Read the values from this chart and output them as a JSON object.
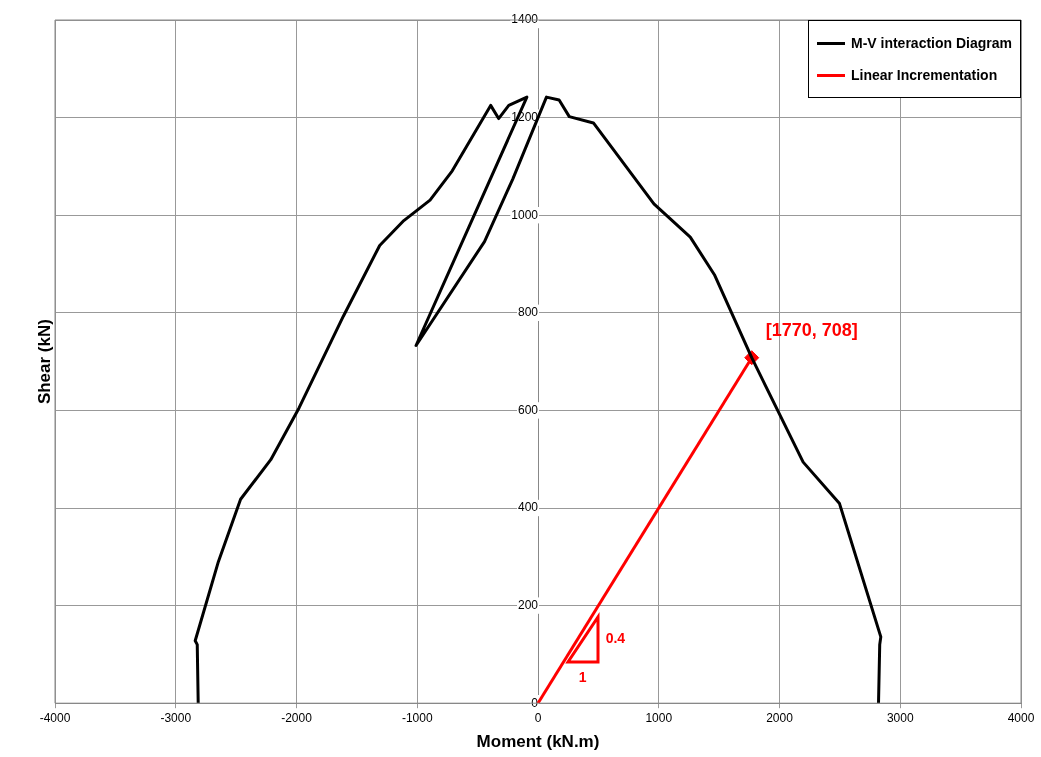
{
  "chart_data": {
    "type": "line",
    "xlabel": "Moment (kN.m)",
    "ylabel": "Shear (kN)",
    "xlim": [
      -4000,
      4000
    ],
    "xticks": [
      -4000,
      -3000,
      -2000,
      -1000,
      0,
      1000,
      2000,
      3000,
      4000
    ],
    "ylim": [
      0,
      1400
    ],
    "yticks": [
      0,
      200,
      400,
      600,
      800,
      1000,
      1200,
      1400
    ],
    "grid": true,
    "legend": "top right",
    "line_style": "solid",
    "series": [
      {
        "name": "M-V interaction Diagram",
        "color": "#000000",
        "x": [
          -2814,
          -2822,
          -2839,
          -2647,
          -2463,
          -2213,
          -1979,
          -1612,
          -1311,
          -1111,
          -894,
          -710,
          -392,
          -326,
          -242,
          -92,
          -1010,
          -443,
          -209,
          70,
          175,
          259,
          459,
          960,
          1261,
          1461,
          1770,
          2196,
          2497,
          2839,
          2830,
          2820
        ],
        "values": [
          0,
          120,
          128,
          290,
          418,
          499,
          605,
          793,
          938,
          989,
          1031,
          1091,
          1225,
          1198,
          1225,
          1242,
          733,
          946,
          1074,
          1242,
          1236,
          1202,
          1189,
          1023,
          955,
          878,
          708,
          494,
          409,
          136,
          120,
          0
        ]
      },
      {
        "name": "Linear Incrementation",
        "color": "#ff0000",
        "x": [
          0,
          1770
        ],
        "values": [
          0,
          708
        ]
      },
      {
        "type": "scatter",
        "color": "#ff0000",
        "marker": "diamond",
        "x": [
          1770
        ],
        "values": [
          708
        ]
      }
    ],
    "annotations": [
      {
        "text": "[1770, 708]",
        "x": 1770,
        "y": 708
      },
      "0.4",
      "1"
    ]
  }
}
